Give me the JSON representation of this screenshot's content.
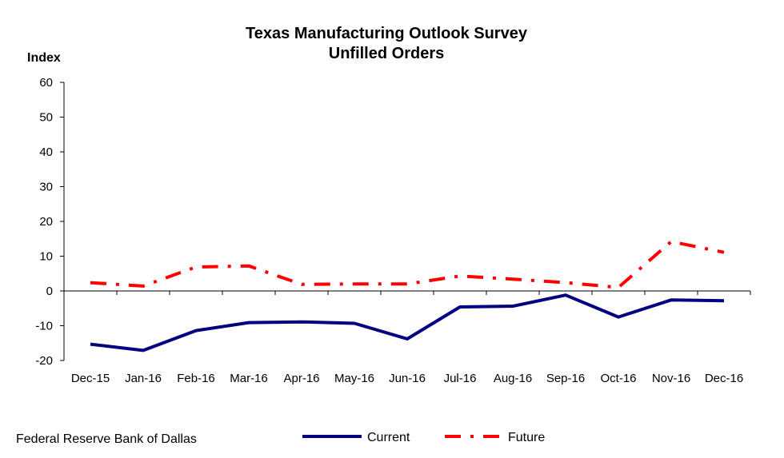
{
  "source": "Federal Reserve Bank of Dallas",
  "chart_data": {
    "type": "line",
    "title": "Texas Manufacturing Outlook Survey",
    "subtitle": "Unfilled Orders",
    "xlabel": "",
    "ylabel": "Index",
    "ylim": [
      -20,
      60
    ],
    "yticks": [
      60,
      50,
      40,
      30,
      20,
      10,
      0,
      -10,
      -20
    ],
    "grid": false,
    "legend_position": "bottom",
    "categories": [
      "Dec-15",
      "Jan-16",
      "Feb-16",
      "Mar-16",
      "Apr-16",
      "May-16",
      "Jun-16",
      "Jul-16",
      "Aug-16",
      "Sep-16",
      "Oct-16",
      "Nov-16",
      "Dec-16"
    ],
    "series": [
      {
        "name": "Current",
        "color": "#000080",
        "style": "solid",
        "values": [
          -15.3,
          -17.1,
          -11.4,
          -9.1,
          -8.9,
          -9.3,
          -13.8,
          -4.6,
          -4.4,
          -1.2,
          -7.5,
          -2.6,
          -2.8
        ]
      },
      {
        "name": "Future",
        "color": "#ff0000",
        "style": "dash-dot",
        "values": [
          2.4,
          1.4,
          6.9,
          7.2,
          1.9,
          2.0,
          2.0,
          4.3,
          3.4,
          2.4,
          1.0,
          14.2,
          11.1
        ]
      }
    ]
  }
}
